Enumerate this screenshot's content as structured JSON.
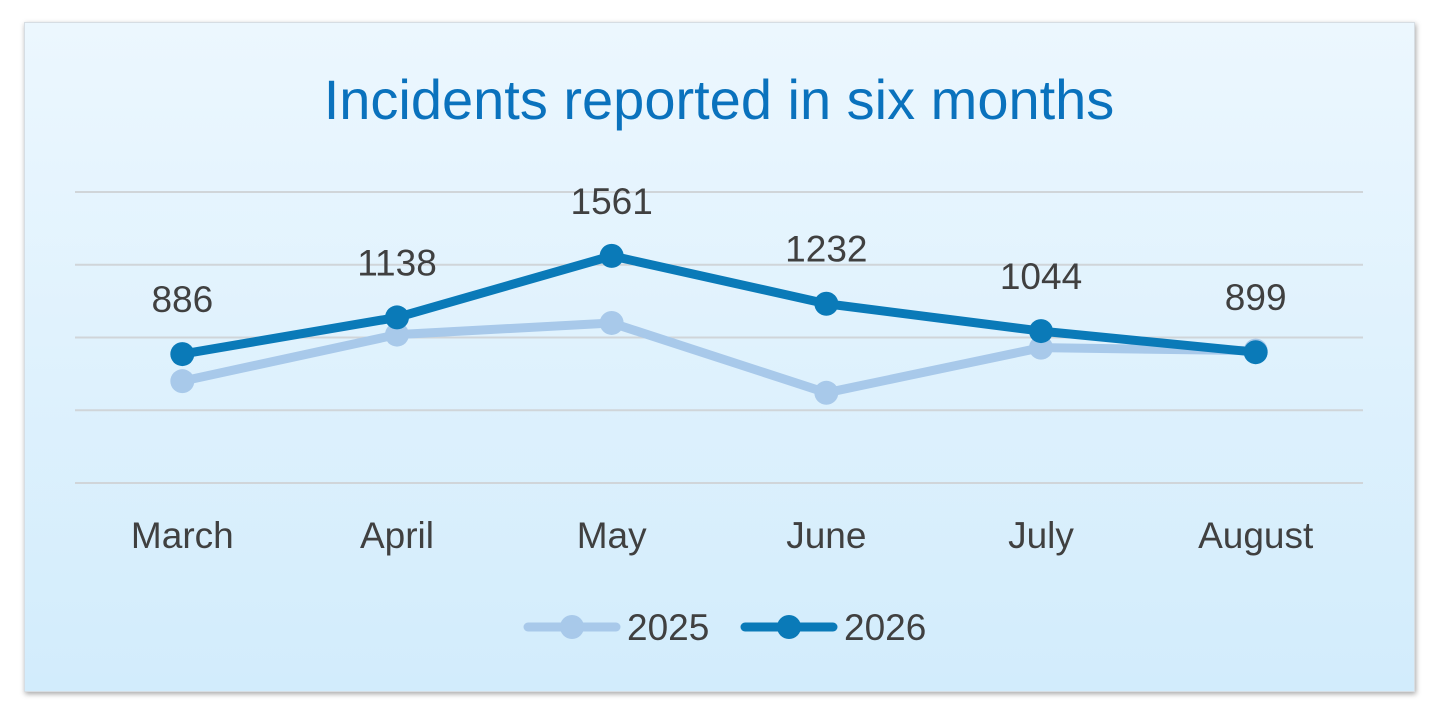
{
  "chart_data": {
    "type": "line",
    "title": "Incidents reported in six months",
    "categories": [
      "March",
      "April",
      "May",
      "June",
      "July",
      "August"
    ],
    "series": [
      {
        "name": "2025",
        "values": [
          700,
          1020,
          1100,
          620,
          930,
          910
        ],
        "color": "#a8c9ea",
        "data_labels": false
      },
      {
        "name": "2026",
        "values": [
          886,
          1138,
          1561,
          1232,
          1044,
          899
        ],
        "color": "#0a7ab8",
        "data_labels": true
      }
    ],
    "ylim": [
      0,
      2000
    ],
    "gridlines": true,
    "y_axis_labels_visible": false,
    "legend_position": "bottom"
  }
}
